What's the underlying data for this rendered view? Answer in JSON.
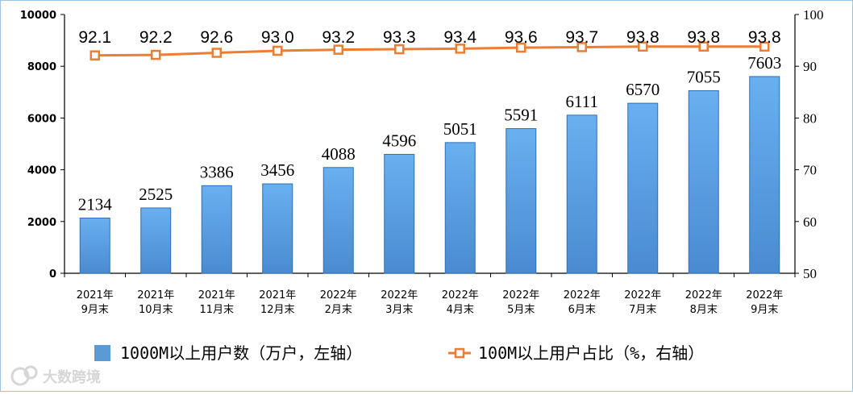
{
  "chart_data": {
    "type": "bar+line",
    "categories": [
      [
        "2021年",
        "9月末"
      ],
      [
        "2021年",
        "10月末"
      ],
      [
        "2021年",
        "11月末"
      ],
      [
        "2021年",
        "12月末"
      ],
      [
        "2022年",
        "2月末"
      ],
      [
        "2022年",
        "3月末"
      ],
      [
        "2022年",
        "4月末"
      ],
      [
        "2022年",
        "5月末"
      ],
      [
        "2022年",
        "6月末"
      ],
      [
        "2022年",
        "7月末"
      ],
      [
        "2022年",
        "8月末"
      ],
      [
        "2022年",
        "9月末"
      ]
    ],
    "series": [
      {
        "name": "1000M以上用户数（万户，左轴）",
        "type": "bar",
        "axis": "left",
        "color": "#5b9bd5",
        "values": [
          2134,
          2525,
          3386,
          3456,
          4088,
          4596,
          5051,
          5591,
          6111,
          6570,
          7055,
          7603
        ]
      },
      {
        "name": "100M以上用户占比（%，右轴）",
        "type": "line",
        "axis": "right",
        "color": "#ed7d31",
        "values": [
          92.1,
          92.2,
          92.6,
          93.0,
          93.2,
          93.3,
          93.4,
          93.6,
          93.7,
          93.8,
          93.8,
          93.8
        ],
        "labels": [
          "92.1",
          "92.2",
          "92.6",
          "93.0",
          "93.2",
          "93.3",
          "93.4",
          "93.6",
          "93.7",
          "93.8",
          "93.8",
          "93.8"
        ]
      }
    ],
    "y_left": {
      "min": 0,
      "max": 10000,
      "ticks": [
        0,
        2000,
        4000,
        6000,
        8000,
        10000
      ]
    },
    "y_right": {
      "min": 50,
      "max": 100,
      "ticks": [
        50,
        60,
        70,
        80,
        90,
        100
      ]
    },
    "legend_position": "bottom",
    "grid": false
  },
  "watermark": "大数跨境"
}
